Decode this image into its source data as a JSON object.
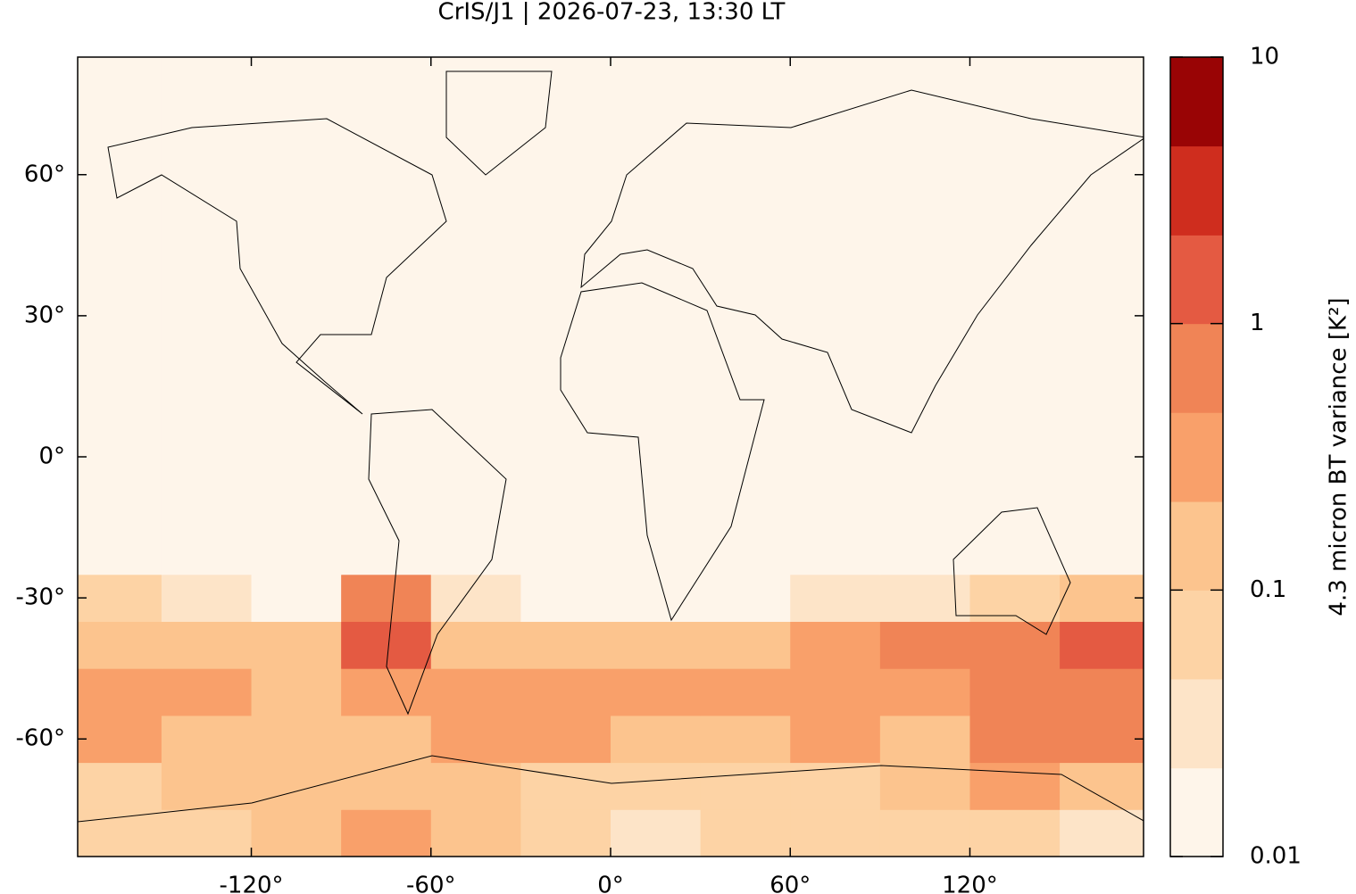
{
  "chart_data": {
    "type": "heatmap",
    "title": "CrIS/J1 | 2026-07-23, 13:30 LT",
    "x": [
      -178,
      -150,
      -120,
      -90,
      -60,
      -30,
      0,
      30,
      60,
      90,
      120,
      150,
      178
    ],
    "y": [
      -85,
      -75,
      -65,
      -55,
      -45,
      -35,
      -25,
      85
    ],
    "z": [
      [
        0.05,
        0.06,
        0.1,
        0.3,
        0.1,
        0.05,
        0.04,
        0.05,
        0.06,
        0.05,
        0.05,
        0.04
      ],
      [
        0.08,
        0.1,
        0.1,
        0.2,
        0.15,
        0.08,
        0.06,
        0.08,
        0.08,
        0.1,
        0.3,
        0.1
      ],
      [
        0.3,
        0.2,
        0.1,
        0.15,
        0.4,
        0.3,
        0.2,
        0.2,
        0.3,
        0.2,
        0.8,
        0.5
      ],
      [
        0.3,
        0.25,
        0.15,
        0.3,
        0.3,
        0.3,
        0.4,
        0.3,
        0.3,
        0.3,
        0.6,
        0.6
      ],
      [
        0.15,
        0.15,
        0.1,
        1.5,
        0.2,
        0.15,
        0.1,
        0.1,
        0.3,
        0.5,
        0.8,
        2
      ],
      [
        0.05,
        0.03,
        0.02,
        0.5,
        0.04,
        0.02,
        0.02,
        0.02,
        0.03,
        0.03,
        0.05,
        0.1
      ],
      [
        0.015,
        0.015,
        0.015,
        0.015,
        0.015,
        0.015,
        0.015,
        0.015,
        0.015,
        0.015,
        0.015,
        0.015
      ]
    ],
    "xlim": [
      -178,
      178
    ],
    "ylim": [
      -85,
      85
    ],
    "xticks": [
      {
        "value": -120,
        "label": "-120°"
      },
      {
        "value": -60,
        "label": "-60°"
      },
      {
        "value": 0,
        "label": "0°"
      },
      {
        "value": 60,
        "label": "60°"
      },
      {
        "value": 120,
        "label": "120°"
      }
    ],
    "yticks": [
      {
        "value": -60,
        "label": "-60°"
      },
      {
        "value": -30,
        "label": "-30°"
      },
      {
        "value": 0,
        "label": "0°"
      },
      {
        "value": 30,
        "label": "30°"
      },
      {
        "value": 60,
        "label": "60°"
      }
    ],
    "colorbar": {
      "label": "4.3 micron BT variance [K²]",
      "scale": "log",
      "lim": [
        0.01,
        10
      ],
      "ticks": [
        0.01,
        0.1,
        1,
        10
      ],
      "levels": [
        0.01,
        0.0215,
        0.0464,
        0.1,
        0.215,
        0.464,
        1,
        2.15,
        4.64,
        10
      ],
      "colors": [
        "#fef5ea",
        "#fde4c8",
        "#fdd3a5",
        "#fcc48e",
        "#f9a06a",
        "#f08456",
        "#e45a42",
        "#cf2d1e",
        "#990405"
      ]
    }
  }
}
